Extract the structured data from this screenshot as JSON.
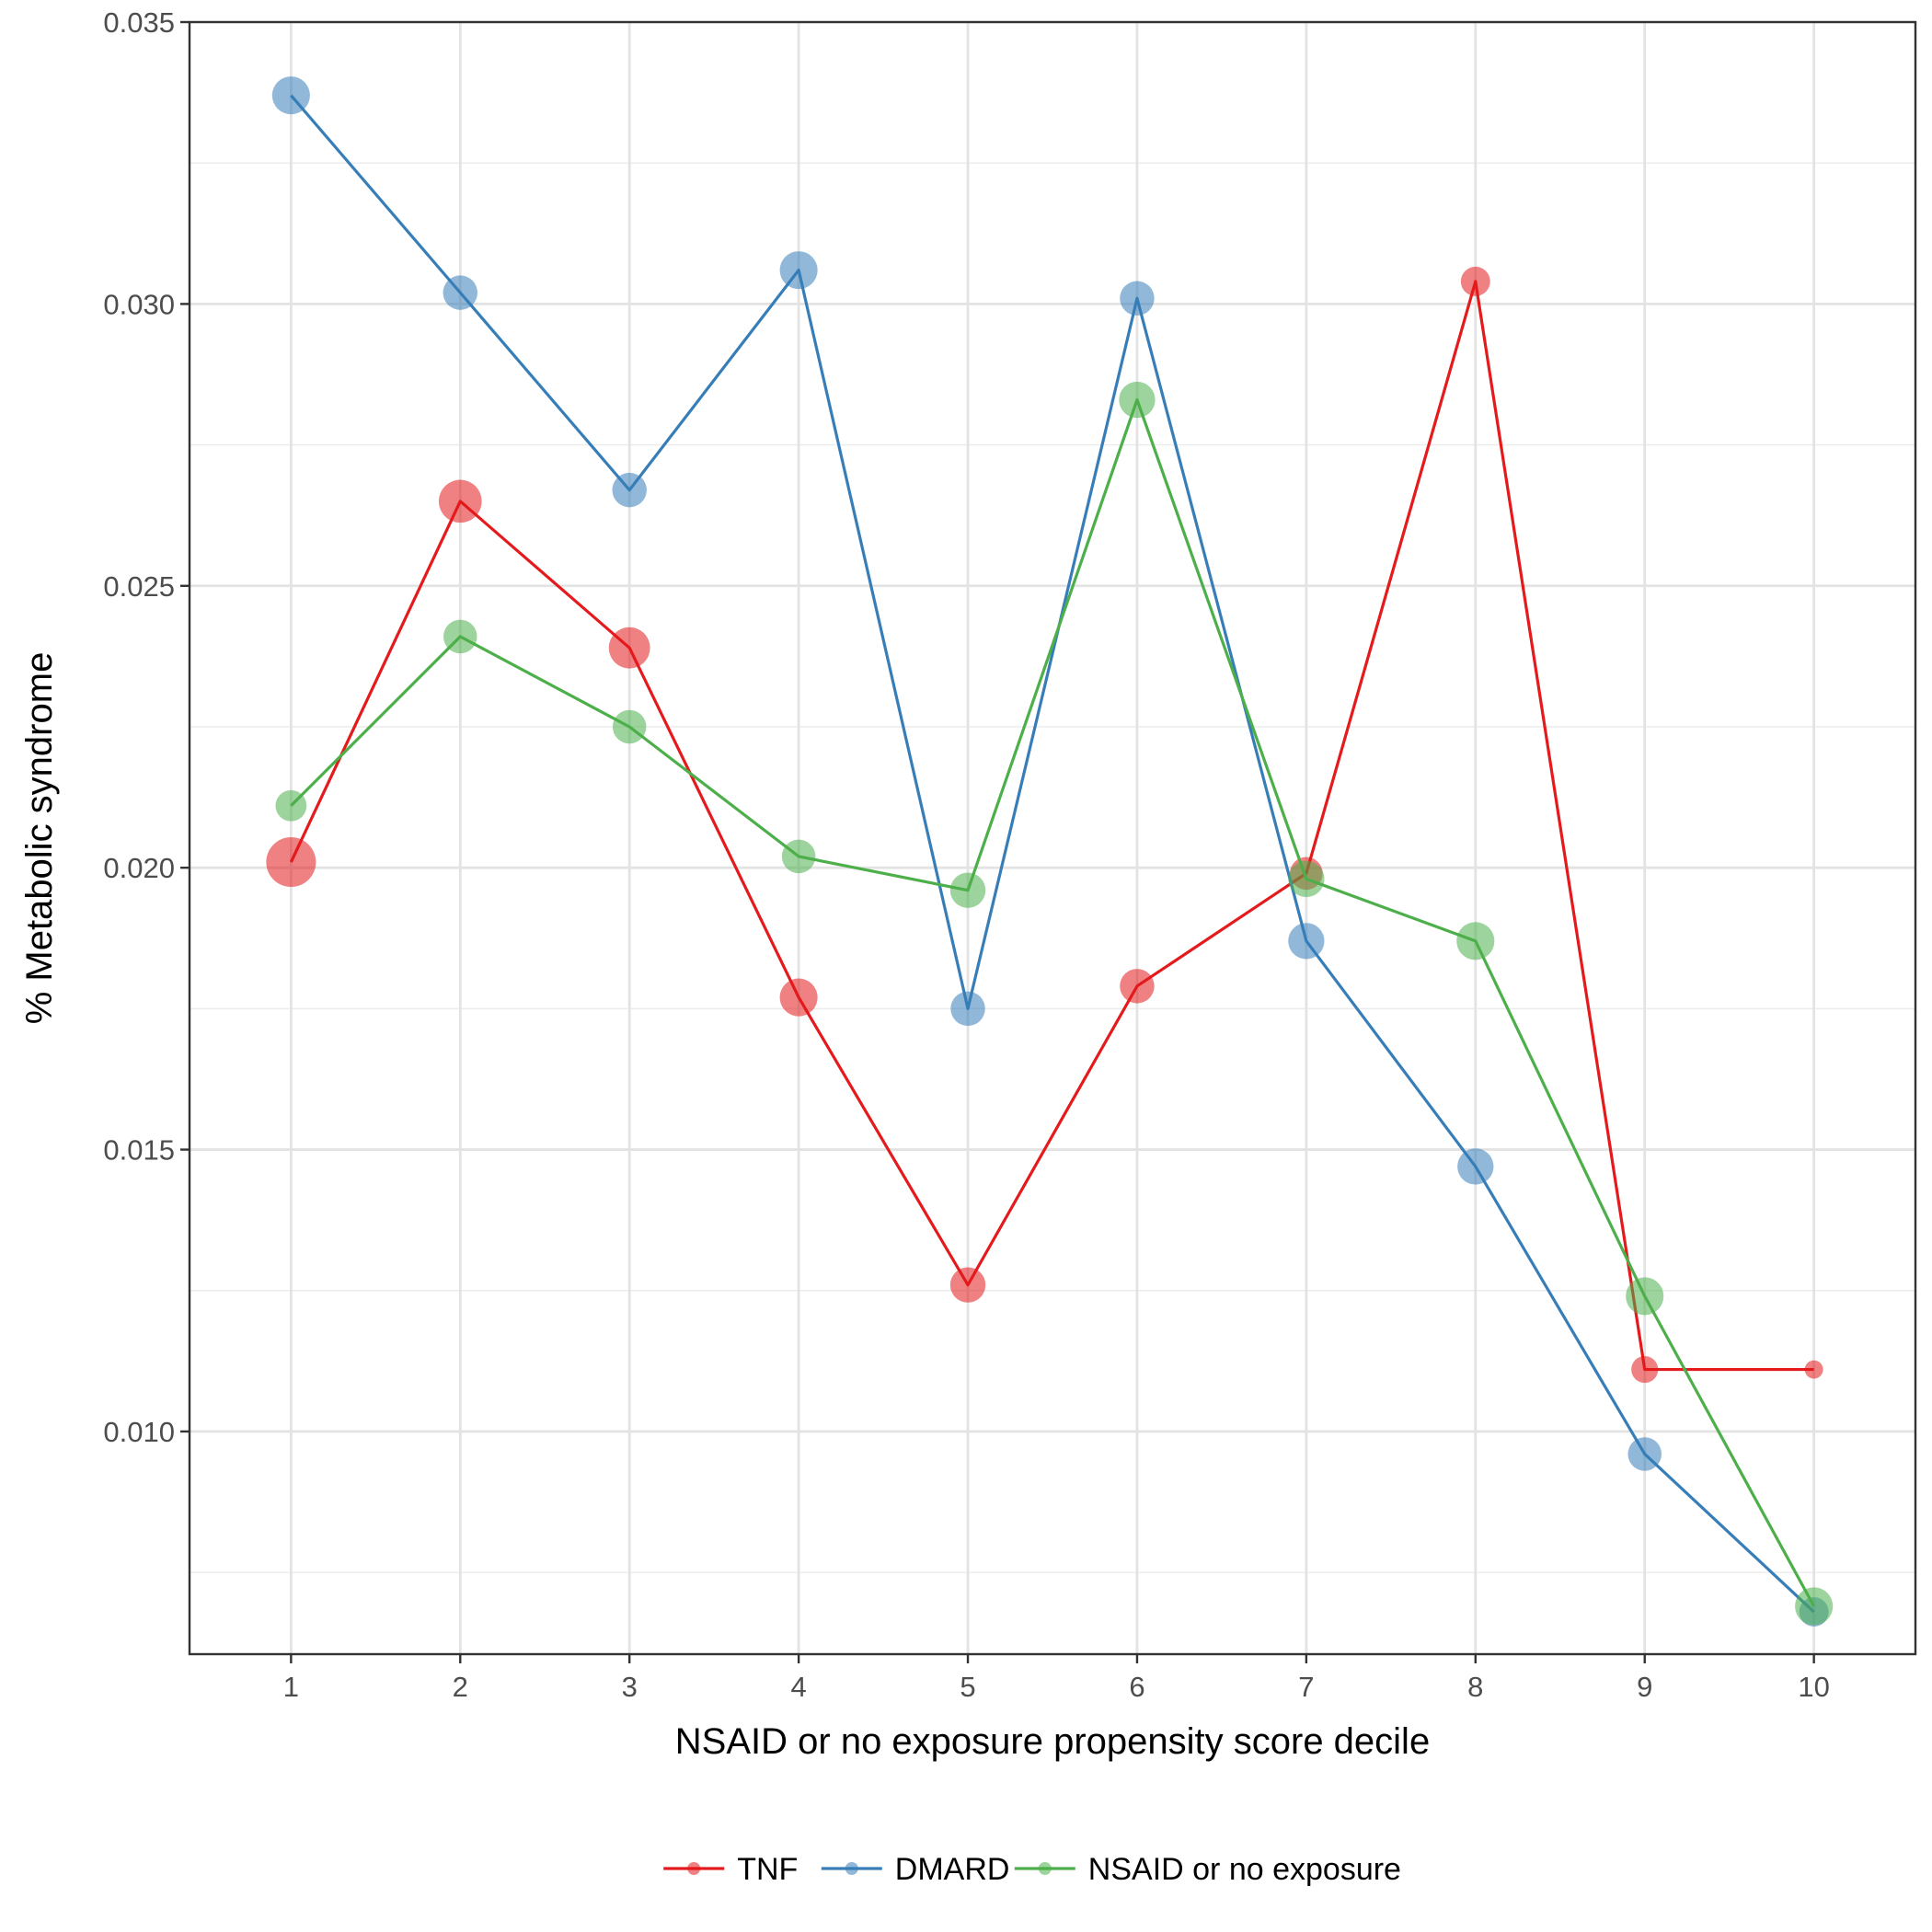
{
  "chart_data": {
    "type": "line",
    "xlabel": "NSAID or no exposure propensity score decile",
    "ylabel": "% Metabolic syndrome",
    "x": [
      1,
      2,
      3,
      4,
      5,
      6,
      7,
      8,
      9,
      10
    ],
    "xlim": [
      0.4,
      10.6
    ],
    "ylim": [
      0.00605,
      0.035
    ],
    "yticks": [
      "0.010",
      "0.015",
      "0.020",
      "0.025",
      "0.030",
      "0.035"
    ],
    "xticks": [
      "1",
      "2",
      "3",
      "4",
      "5",
      "6",
      "7",
      "8",
      "9",
      "10"
    ],
    "grid": true,
    "legend_position": "bottom",
    "series": [
      {
        "name": "TNF",
        "color": "#e41a1c",
        "values": [
          0.0201,
          0.0265,
          0.0239,
          0.0177,
          0.0126,
          0.0179,
          0.0199,
          0.0304,
          0.0111,
          0.0111
        ],
        "point_size": [
          5,
          4.2,
          4,
          3.6,
          3.3,
          3.2,
          3,
          2.6,
          2.3,
          1.3
        ]
      },
      {
        "name": "DMARD",
        "color": "#377eb8",
        "values": [
          0.0337,
          0.0302,
          0.0267,
          0.0306,
          0.0175,
          0.0301,
          0.0187,
          0.0147,
          0.0096,
          0.0068
        ],
        "point_size": [
          3.6,
          3.2,
          3.2,
          3.6,
          3.2,
          3.2,
          3.4,
          3.4,
          3.1,
          2.6
        ]
      },
      {
        "name": "NSAID or no exposure",
        "color": "#4daf4a",
        "values": [
          0.0211,
          0.0241,
          0.0225,
          0.0202,
          0.0196,
          0.0283,
          0.0198,
          0.0187,
          0.0124,
          0.0069
        ],
        "point_size": [
          2.8,
          3.1,
          3.1,
          3.1,
          3.3,
          3.4,
          3.4,
          3.6,
          3.6,
          3.6
        ]
      }
    ]
  }
}
